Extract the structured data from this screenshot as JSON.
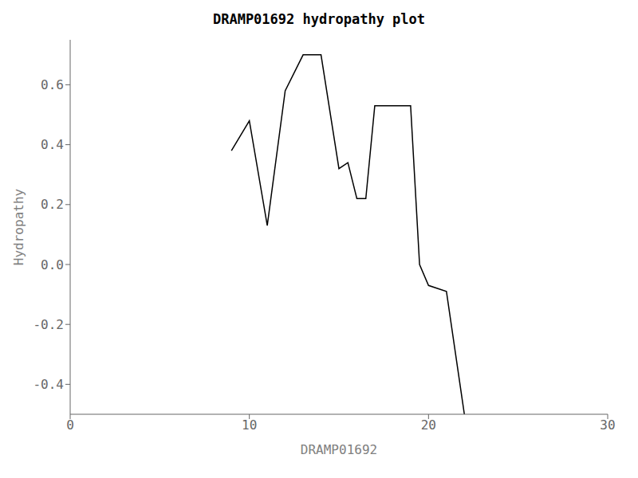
{
  "chart_data": {
    "type": "line",
    "title": "DRAMP01692 hydropathy plot",
    "xlabel": "DRAMP01692",
    "ylabel": "Hydropathy",
    "x": [
      9,
      10,
      11,
      12,
      13,
      14,
      15,
      15.5,
      16,
      16.5,
      17,
      18,
      19,
      19.5,
      20,
      21,
      22
    ],
    "values": [
      0.38,
      0.48,
      0.13,
      0.58,
      0.7,
      0.7,
      0.32,
      0.34,
      0.22,
      0.22,
      0.53,
      0.53,
      0.53,
      0.0,
      -0.07,
      -0.09,
      -0.5
    ],
    "color": "#000000",
    "xlim": [
      0,
      30
    ],
    "ylim": [
      -0.5,
      0.75
    ],
    "xticks": [
      0,
      10,
      20,
      30
    ],
    "yticks": [
      -0.4,
      -0.2,
      {
        "value": 0.0,
        "label": "0.0"
      },
      0.2,
      0.4,
      0.6
    ]
  }
}
